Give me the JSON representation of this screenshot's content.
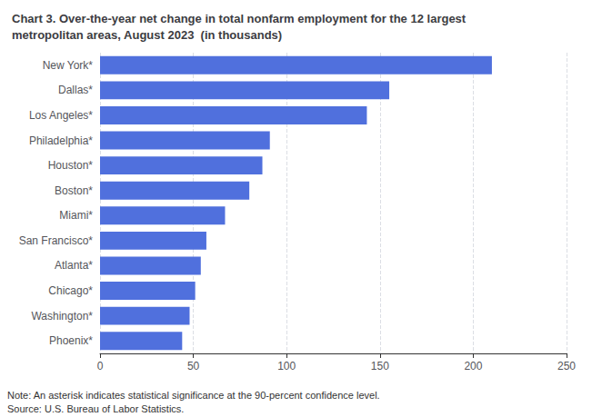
{
  "chart_data": {
    "type": "bar",
    "orientation": "horizontal",
    "title": "Chart 3. Over-the-year net change in total nonfarm employment for the 12 largest\nmetropolitan areas, August 2023  (in thousands)",
    "categories": [
      "New York*",
      "Dallas*",
      "Los Angeles*",
      "Philadelphia*",
      "Houston*",
      "Boston*",
      "Miami*",
      "San Francisco*",
      "Atlanta*",
      "Chicago*",
      "Washington*",
      "Phoenix*"
    ],
    "values": [
      210,
      155,
      143,
      91,
      87,
      80,
      67,
      57,
      54,
      51,
      48,
      44
    ],
    "xlim": [
      0,
      250
    ],
    "xticks": [
      0,
      50,
      100,
      150,
      200,
      250
    ],
    "grid": true,
    "annotations": [
      "Note: An asterisk indicates statistical significance at the 90-percent confidence level.",
      "Source: U.S. Bureau of Labor Statistics."
    ]
  }
}
